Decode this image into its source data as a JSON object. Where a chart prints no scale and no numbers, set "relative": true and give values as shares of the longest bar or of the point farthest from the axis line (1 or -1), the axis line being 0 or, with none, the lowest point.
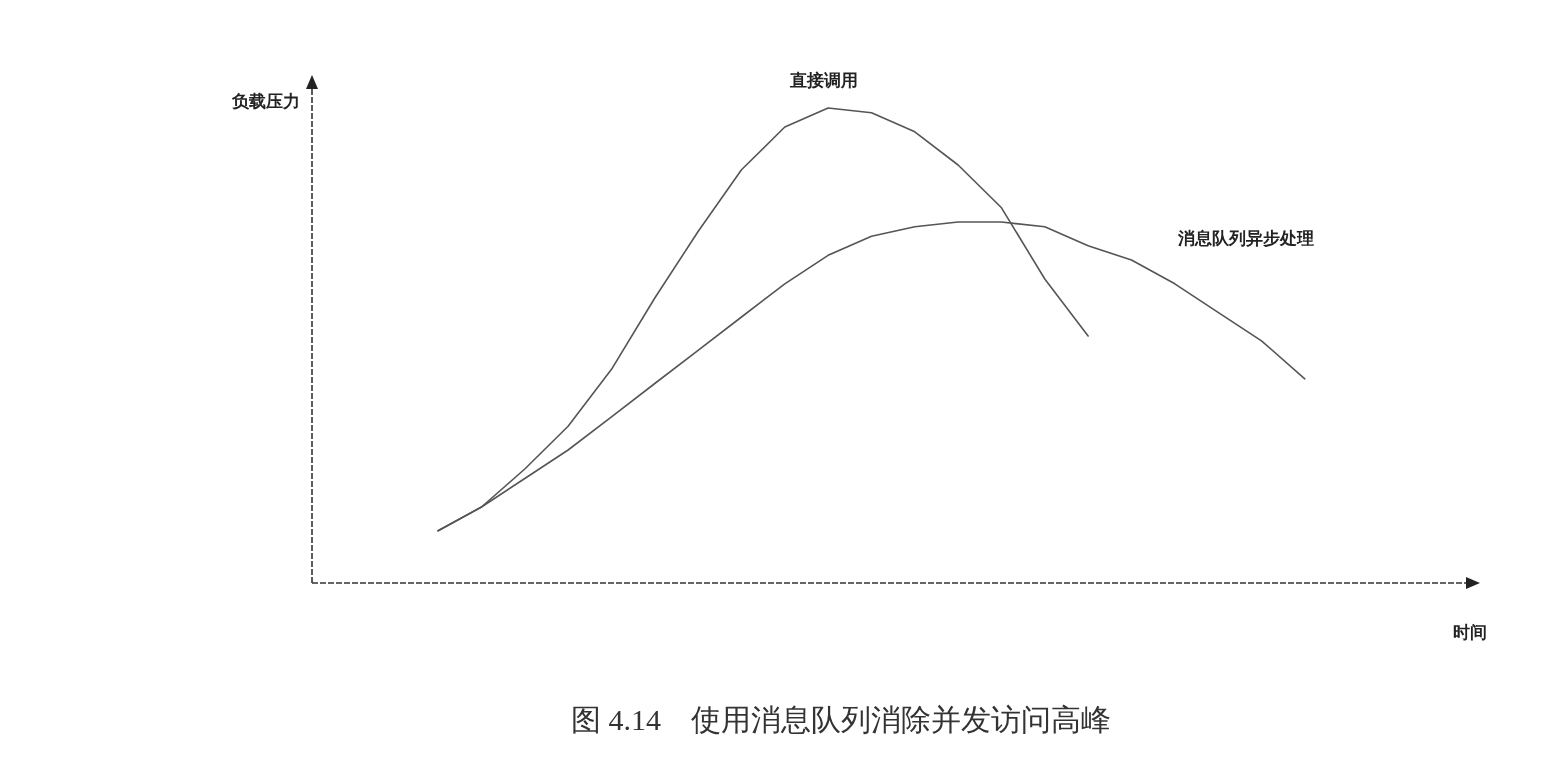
{
  "chart_data": {
    "type": "line",
    "relative": true,
    "title": "图 4.14　使用消息队列消除并发访问高峰",
    "annotations": [
      "负载压力",
      "时间"
    ],
    "line_style": "solid",
    "categories": [
      null,
      null,
      null,
      null,
      null,
      null,
      null,
      null,
      null,
      null,
      null,
      null,
      null,
      null,
      null,
      null,
      null,
      null,
      null,
      null,
      null
    ],
    "series": [
      {
        "name": "直接调用",
        "color": "#555555",
        "values": [
          0.11,
          0.16,
          0.24,
          0.33,
          0.45,
          0.6,
          0.74,
          0.87,
          0.96,
          1,
          0.99,
          0.95,
          0.88,
          0.79,
          0.64,
          0.52,
          null,
          null,
          null,
          null,
          null
        ]
      },
      {
        "name": "消息队列异步处理",
        "color": "#555555",
        "values": [
          0.11,
          0.16,
          0.22,
          0.28,
          0.35,
          0.42,
          0.49,
          0.56,
          0.63,
          0.69,
          0.73,
          0.75,
          0.76,
          0.76,
          0.75,
          0.71,
          0.68,
          0.63,
          0.57,
          0.51,
          0.43
        ]
      }
    ]
  }
}
